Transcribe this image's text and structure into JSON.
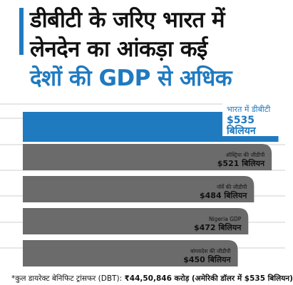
{
  "headline": {
    "line1": "डीबीटी के जरिए भारत में",
    "line2": "लेनदेन का आंकड़ा कई",
    "line3": "देशों की GDP से अधिक"
  },
  "footnote": {
    "prefix": "*कुल डायरेक्ट बेनिफिट ट्रांसफर (DBT): ",
    "bold": "₹44,50,846 करोड़ (अमेरिकी डॉलर में $535 बिलियन)"
  },
  "colors": {
    "highlight": "#1f7ac0",
    "bar": "#6b6b6b",
    "grid": "#cfcfcf",
    "accent": "#1f7ac0"
  },
  "chart_data": {
    "type": "bar",
    "orientation": "horizontal",
    "title": "",
    "xlabel": "",
    "ylabel": "",
    "grid": true,
    "unit": "USD billion",
    "bars": [
      {
        "label": "भारत में डीबीटी",
        "value_label": "$535 बिलियन",
        "value": 535,
        "highlight": true
      },
      {
        "label": "ऑस्ट्रिया की जीडीपी",
        "value_label": "$521 बिलियन",
        "value": 521,
        "highlight": false
      },
      {
        "label": "नॉर्वे की जीडीपी",
        "value_label": "$484 बिलियन",
        "value": 484,
        "highlight": false
      },
      {
        "label": "Nigeria GDP",
        "value_label": "$472 बिलियन",
        "value": 472,
        "highlight": false
      },
      {
        "label": "बांग्लादेश की जीडीपी",
        "value_label": "$450 बिलियन",
        "value": 450,
        "highlight": false
      }
    ]
  }
}
